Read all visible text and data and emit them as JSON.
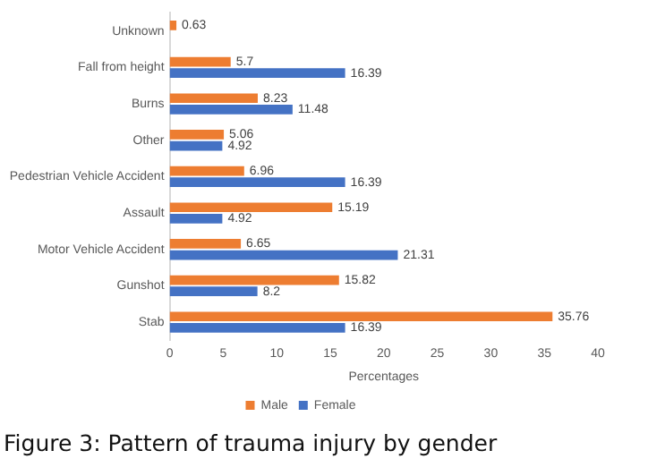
{
  "chart_data": {
    "type": "bar",
    "orientation": "horizontal",
    "title": "Figure 3:  Pattern of trauma injury by gender",
    "xlabel": "Percentages",
    "categories": [
      "Unknown",
      "Fall from height",
      "Burns",
      "Other",
      "Pedestrian Vehicle Accident",
      "Assault",
      "Motor Vehicle Accident",
      "Gunshot",
      "Stab"
    ],
    "series": [
      {
        "name": "Male",
        "color": "#ed7d31",
        "values": [
          0.63,
          5.7,
          8.23,
          5.06,
          6.96,
          15.19,
          6.65,
          15.82,
          35.76
        ]
      },
      {
        "name": "Female",
        "color": "#4472c4",
        "values": [
          null,
          16.39,
          11.48,
          4.92,
          16.39,
          4.92,
          21.31,
          8.2,
          16.39
        ]
      }
    ],
    "xlim": [
      0,
      40
    ],
    "xticks": [
      0,
      5,
      10,
      15,
      20,
      25,
      30,
      35,
      40
    ],
    "grid": false,
    "legend": "bottom",
    "data_labels": true
  }
}
